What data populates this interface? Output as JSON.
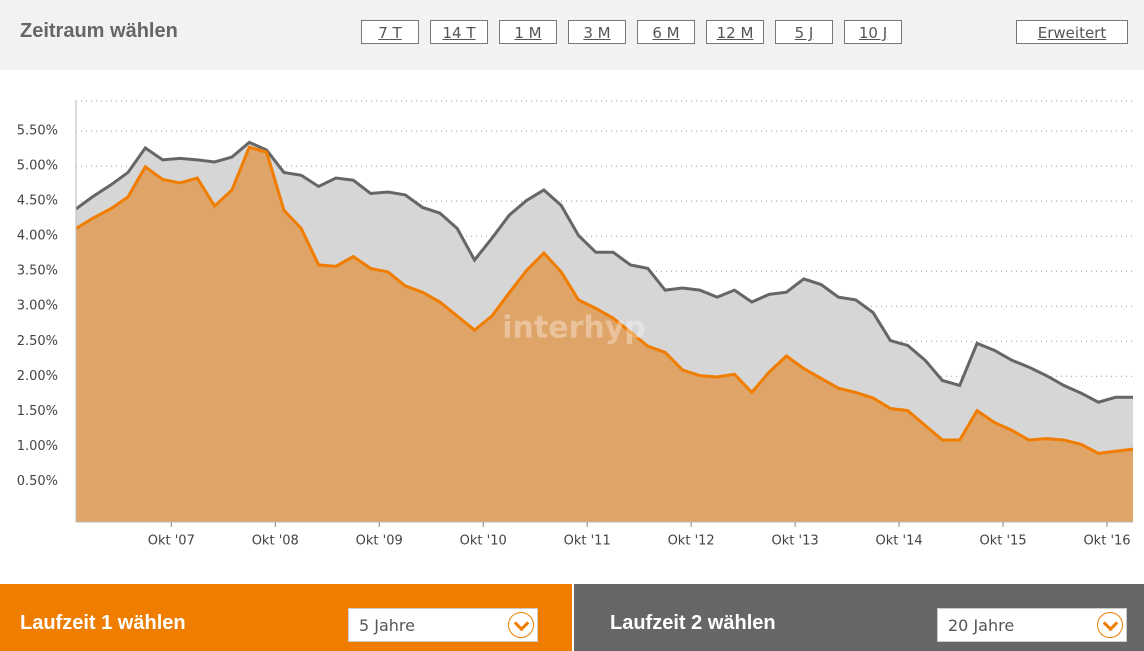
{
  "header": {
    "title": "Zeitraum wählen",
    "ranges": [
      "7 T",
      "14 T",
      "1 M",
      "3 M",
      "6 M",
      "12 M",
      "5 J",
      "10 J"
    ],
    "advanced": "Erweitert"
  },
  "chart_data": {
    "type": "area",
    "watermark": "interhyp",
    "x": [
      "2006-11",
      "2007-01",
      "2007-03",
      "2007-05",
      "2007-07",
      "2007-09",
      "2007-11",
      "2008-01",
      "2008-03",
      "2008-05",
      "2008-07",
      "2008-09",
      "2008-11",
      "2009-01",
      "2009-03",
      "2009-05",
      "2009-07",
      "2009-09",
      "2009-11",
      "2010-01",
      "2010-03",
      "2010-05",
      "2010-07",
      "2010-09",
      "2010-11",
      "2011-01",
      "2011-03",
      "2011-05",
      "2011-07",
      "2011-09",
      "2011-11",
      "2012-01",
      "2012-03",
      "2012-05",
      "2012-07",
      "2012-09",
      "2012-11",
      "2013-01",
      "2013-03",
      "2013-05",
      "2013-07",
      "2013-09",
      "2013-11",
      "2014-01",
      "2014-03",
      "2014-05",
      "2014-07",
      "2014-09",
      "2014-11",
      "2015-01",
      "2015-03",
      "2015-05",
      "2015-07",
      "2015-09",
      "2015-11",
      "2016-01",
      "2016-03",
      "2016-05",
      "2016-07",
      "2016-09",
      "2016-11",
      "2017-01"
    ],
    "series": [
      {
        "name": "Laufzeit 2",
        "color": "#666666",
        "fill": "#d6d6d6",
        "values": [
          4.39,
          4.57,
          4.73,
          4.91,
          5.26,
          5.09,
          5.11,
          5.09,
          5.06,
          5.13,
          5.34,
          5.23,
          4.91,
          4.87,
          4.71,
          4.83,
          4.8,
          4.61,
          4.63,
          4.59,
          4.41,
          4.33,
          4.11,
          3.66,
          3.97,
          4.3,
          4.51,
          4.66,
          4.44,
          4.01,
          3.77,
          3.77,
          3.59,
          3.54,
          3.23,
          3.26,
          3.23,
          3.13,
          3.23,
          3.06,
          3.17,
          3.2,
          3.39,
          3.31,
          3.13,
          3.09,
          2.91,
          2.51,
          2.44,
          2.23,
          1.94,
          1.87,
          2.47,
          2.37,
          2.23,
          2.13,
          2.01,
          1.87,
          1.76,
          1.63,
          1.7,
          1.7
        ]
      },
      {
        "name": "Laufzeit 1",
        "color": "#f07d00",
        "fill": "#dfa467",
        "values": [
          4.11,
          4.26,
          4.39,
          4.56,
          4.99,
          4.81,
          4.76,
          4.83,
          4.43,
          4.66,
          5.27,
          5.2,
          4.37,
          4.11,
          3.59,
          3.57,
          3.71,
          3.54,
          3.49,
          3.29,
          3.2,
          3.06,
          2.86,
          2.66,
          2.86,
          3.19,
          3.51,
          3.76,
          3.49,
          3.09,
          2.97,
          2.83,
          2.63,
          2.43,
          2.34,
          2.09,
          2.01,
          1.99,
          2.03,
          1.77,
          2.06,
          2.29,
          2.11,
          1.97,
          1.83,
          1.77,
          1.69,
          1.54,
          1.51,
          1.3,
          1.09,
          1.09,
          1.51,
          1.34,
          1.23,
          1.09,
          1.11,
          1.09,
          1.03,
          0.9,
          0.93,
          0.96
        ]
      }
    ],
    "xlim": [
      "2006-11",
      "2017-01"
    ],
    "xticks": [
      {
        "value": "2007-10",
        "label": "Okt '07"
      },
      {
        "value": "2008-10",
        "label": "Okt '08"
      },
      {
        "value": "2009-10",
        "label": "Okt '09"
      },
      {
        "value": "2010-10",
        "label": "Okt '10"
      },
      {
        "value": "2011-10",
        "label": "Okt '11"
      },
      {
        "value": "2012-10",
        "label": "Okt '12"
      },
      {
        "value": "2013-10",
        "label": "Okt '13"
      },
      {
        "value": "2014-10",
        "label": "Okt '14"
      },
      {
        "value": "2015-10",
        "label": "Okt '15"
      },
      {
        "value": "2016-10",
        "label": "Okt '16"
      }
    ],
    "ylim": [
      -0.08,
      5.93
    ],
    "yticks": [
      {
        "value": 0.5,
        "label": "0.50%"
      },
      {
        "value": 1,
        "label": "1.00%"
      },
      {
        "value": 1.5,
        "label": "1.50%"
      },
      {
        "value": 2,
        "label": "2.00%"
      },
      {
        "value": 2.5,
        "label": "2.50%"
      },
      {
        "value": 3,
        "label": "3.00%"
      },
      {
        "value": 3.5,
        "label": "3.50%"
      },
      {
        "value": 4,
        "label": "4.00%"
      },
      {
        "value": 4.5,
        "label": "4.50%"
      },
      {
        "value": 5,
        "label": "5.00%"
      },
      {
        "value": 5.5,
        "label": "5.50%"
      }
    ],
    "grid": true
  },
  "footer": {
    "left": {
      "label": "Laufzeit 1 wählen",
      "selected": "5 Jahre"
    },
    "right": {
      "label": "Laufzeit 2 wählen",
      "selected": "20 Jahre"
    }
  }
}
